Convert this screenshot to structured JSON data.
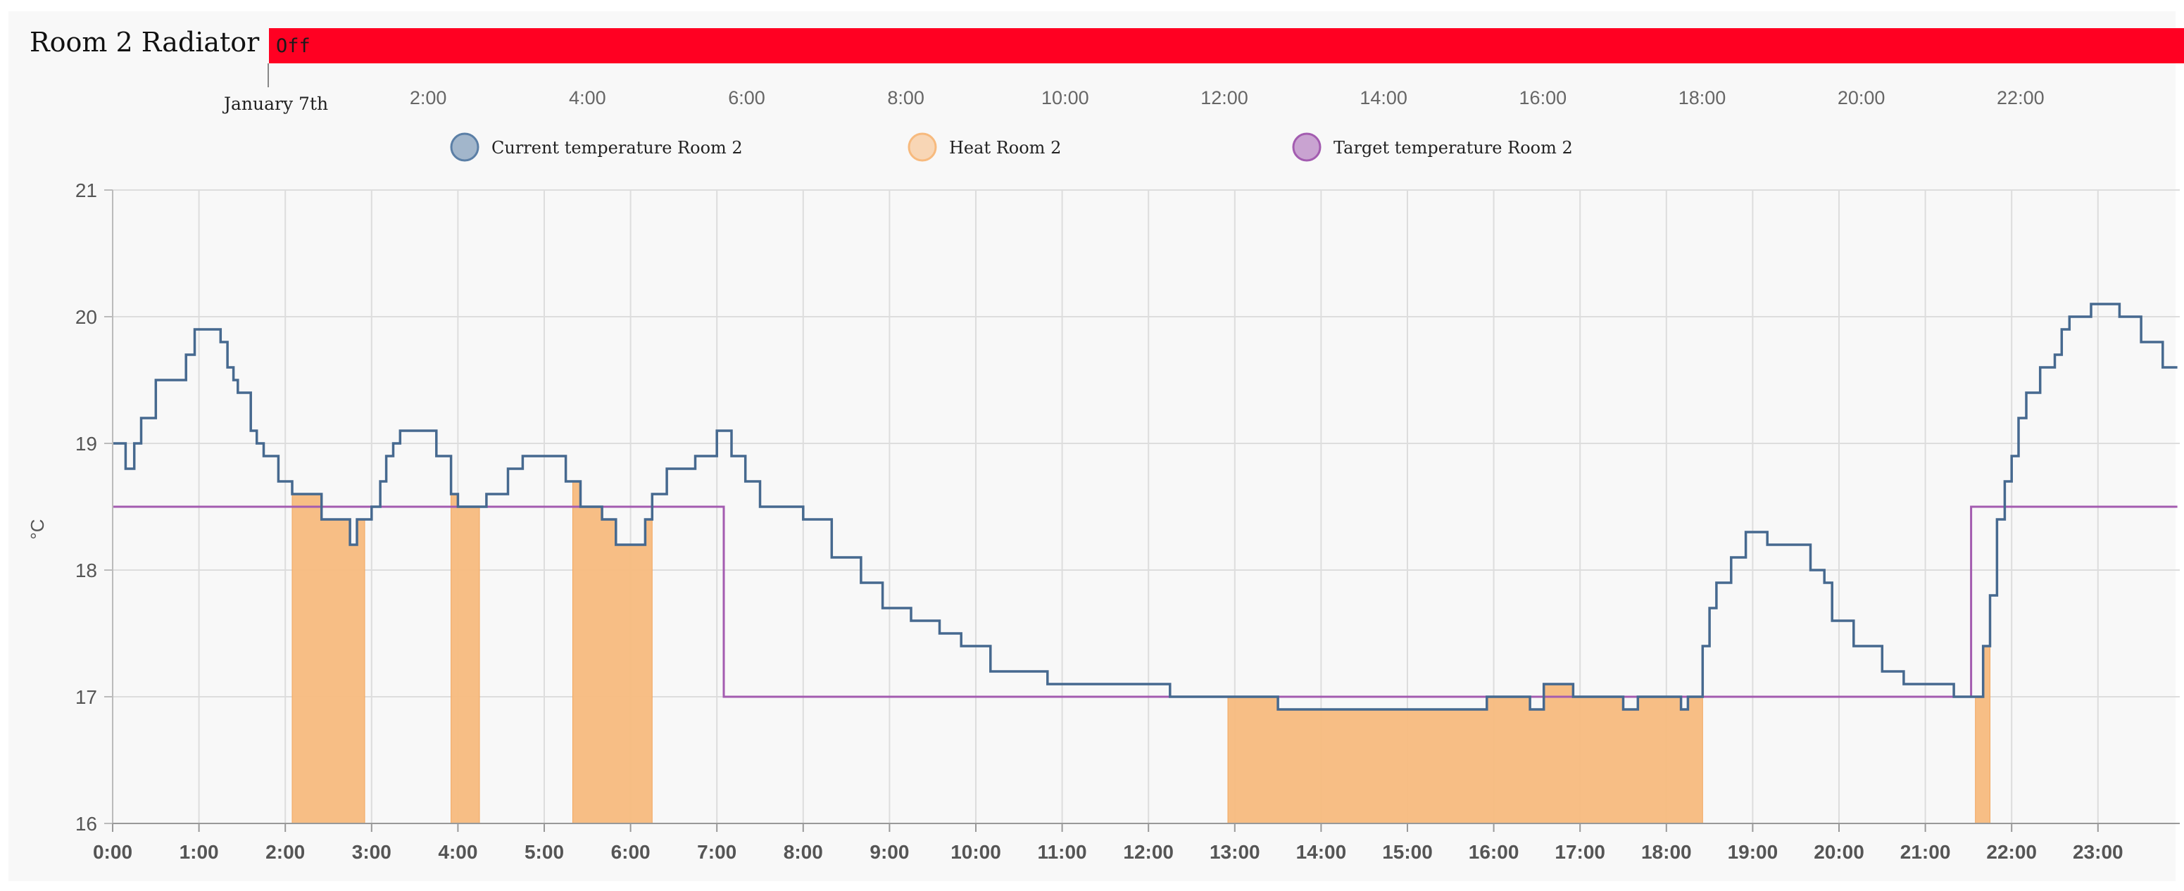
{
  "timeline": {
    "title": "Room 2 Radiator",
    "state_label": "Off",
    "state_color": "#ff0022",
    "date_label": "January 7th",
    "ticks": [
      "2:00",
      "4:00",
      "6:00",
      "8:00",
      "10:00",
      "12:00",
      "14:00",
      "16:00",
      "18:00",
      "20:00",
      "22:00"
    ]
  },
  "chart_data": {
    "type": "line",
    "title": "",
    "xlabel": "",
    "ylabel": "°C",
    "xlim": [
      0,
      23.92
    ],
    "ylim": [
      16,
      21
    ],
    "yticks": [
      "16",
      "17",
      "18",
      "19",
      "20",
      "21"
    ],
    "xticks": [
      "0:00",
      "1:00",
      "2:00",
      "3:00",
      "4:00",
      "5:00",
      "6:00",
      "7:00",
      "8:00",
      "9:00",
      "10:00",
      "11:00",
      "12:00",
      "13:00",
      "14:00",
      "15:00",
      "16:00",
      "17:00",
      "18:00",
      "19:00",
      "20:00",
      "21:00",
      "22:00",
      "23:00"
    ],
    "grid": true,
    "legend": "top",
    "series": [
      {
        "name": "Current temperature Room 2",
        "style": "step",
        "color": "#5b7fa6",
        "points": [
          [
            0,
            19.0
          ],
          [
            0.15,
            18.8
          ],
          [
            0.25,
            19.0
          ],
          [
            0.33,
            19.2
          ],
          [
            0.5,
            19.5
          ],
          [
            0.85,
            19.7
          ],
          [
            0.95,
            19.9
          ],
          [
            1.25,
            19.8
          ],
          [
            1.33,
            19.6
          ],
          [
            1.4,
            19.5
          ],
          [
            1.45,
            19.4
          ],
          [
            1.6,
            19.1
          ],
          [
            1.67,
            19.0
          ],
          [
            1.75,
            18.9
          ],
          [
            1.92,
            18.7
          ],
          [
            2.08,
            18.6
          ],
          [
            2.42,
            18.4
          ],
          [
            2.75,
            18.2
          ],
          [
            2.83,
            18.4
          ],
          [
            3.0,
            18.5
          ],
          [
            3.1,
            18.7
          ],
          [
            3.17,
            18.9
          ],
          [
            3.25,
            19.0
          ],
          [
            3.33,
            19.1
          ],
          [
            3.75,
            18.9
          ],
          [
            3.92,
            18.6
          ],
          [
            4.0,
            18.5
          ],
          [
            4.33,
            18.6
          ],
          [
            4.58,
            18.8
          ],
          [
            4.75,
            18.9
          ],
          [
            5.25,
            18.7
          ],
          [
            5.42,
            18.5
          ],
          [
            5.67,
            18.4
          ],
          [
            5.83,
            18.2
          ],
          [
            6.17,
            18.4
          ],
          [
            6.25,
            18.6
          ],
          [
            6.42,
            18.8
          ],
          [
            6.75,
            18.9
          ],
          [
            7.0,
            19.1
          ],
          [
            7.17,
            18.9
          ],
          [
            7.33,
            18.7
          ],
          [
            7.5,
            18.5
          ],
          [
            8.0,
            18.4
          ],
          [
            8.33,
            18.1
          ],
          [
            8.67,
            17.9
          ],
          [
            8.92,
            17.7
          ],
          [
            9.25,
            17.6
          ],
          [
            9.58,
            17.5
          ],
          [
            9.83,
            17.4
          ],
          [
            10.17,
            17.2
          ],
          [
            10.83,
            17.1
          ],
          [
            12.25,
            17.0
          ],
          [
            13.5,
            16.9
          ],
          [
            15.92,
            17.0
          ],
          [
            16.42,
            16.9
          ],
          [
            16.58,
            17.1
          ],
          [
            16.92,
            17.0
          ],
          [
            17.5,
            16.9
          ],
          [
            17.67,
            17.0
          ],
          [
            18.17,
            16.9
          ],
          [
            18.25,
            17.0
          ],
          [
            18.42,
            17.4
          ],
          [
            18.5,
            17.7
          ],
          [
            18.58,
            17.9
          ],
          [
            18.75,
            18.1
          ],
          [
            18.92,
            18.3
          ],
          [
            19.17,
            18.2
          ],
          [
            19.67,
            18.0
          ],
          [
            19.83,
            17.9
          ],
          [
            19.92,
            17.6
          ],
          [
            20.17,
            17.4
          ],
          [
            20.5,
            17.2
          ],
          [
            20.75,
            17.1
          ],
          [
            21.33,
            17.0
          ],
          [
            21.67,
            17.4
          ],
          [
            21.75,
            17.8
          ],
          [
            21.83,
            18.4
          ],
          [
            21.92,
            18.7
          ],
          [
            22.0,
            18.9
          ],
          [
            22.08,
            19.2
          ],
          [
            22.17,
            19.4
          ],
          [
            22.33,
            19.6
          ],
          [
            22.5,
            19.7
          ],
          [
            22.58,
            19.9
          ],
          [
            22.67,
            20.0
          ],
          [
            22.92,
            20.1
          ],
          [
            23.25,
            20.0
          ],
          [
            23.5,
            19.8
          ],
          [
            23.75,
            19.6
          ],
          [
            23.92,
            19.6
          ]
        ]
      },
      {
        "name": "Heat Room 2",
        "style": "filled-interval",
        "color": "#f7ba7e",
        "intervals": [
          [
            2.08,
            2.92
          ],
          [
            3.92,
            4.25
          ],
          [
            5.33,
            6.25
          ],
          [
            12.92,
            18.42
          ],
          [
            21.58,
            21.75
          ]
        ]
      },
      {
        "name": "Target temperature Room 2",
        "style": "step",
        "color": "#a35cb0",
        "points": [
          [
            0,
            18.5
          ],
          [
            7.08,
            17.0
          ],
          [
            21.53,
            18.5
          ],
          [
            23.92,
            18.5
          ]
        ]
      }
    ]
  }
}
